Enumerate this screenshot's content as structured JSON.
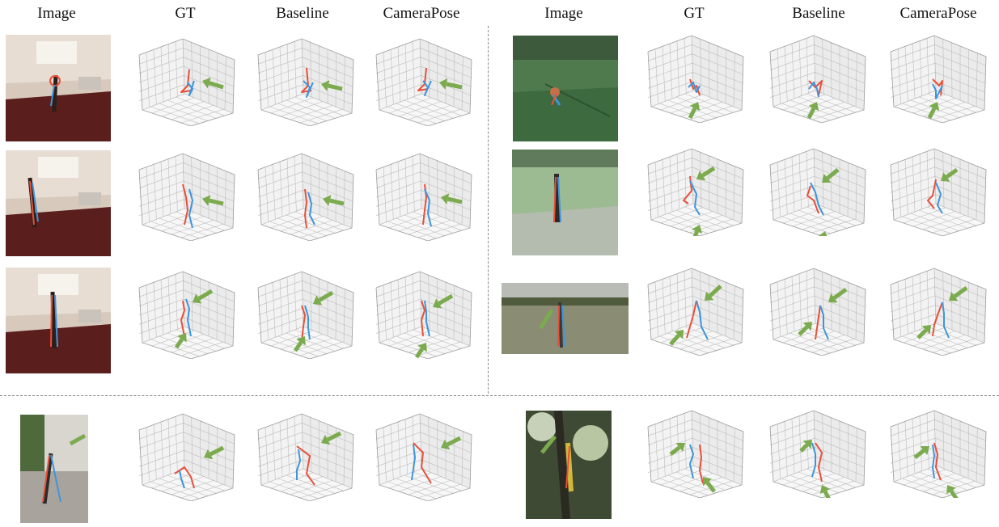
{
  "headers": {
    "left": [
      "Image",
      "GT",
      "Baseline",
      "CameraPose"
    ],
    "right": [
      "Image",
      "GT",
      "Baseline",
      "CameraPose"
    ]
  },
  "colors": {
    "left_limb": "#e8503a",
    "right_limb": "#3f95db",
    "arrow": "#7bab4e",
    "grid_line": "#bdbdbd",
    "pane_left": "#f3f3f3",
    "pane_right": "#ebebeb",
    "pane_floor": "#f7f7f7"
  },
  "rows": [
    {
      "label": "row-1-left",
      "image_scene": "indoor-studio"
    },
    {
      "label": "row-2-left",
      "image_scene": "indoor-studio"
    },
    {
      "label": "row-3-left",
      "image_scene": "indoor-studio"
    },
    {
      "label": "row-1-right",
      "image_scene": "green-studio"
    },
    {
      "label": "row-2-right",
      "image_scene": "green-studio"
    },
    {
      "label": "row-3-right",
      "image_scene": "outdoor-field"
    },
    {
      "label": "row-4-left",
      "image_scene": "outdoor-building"
    },
    {
      "label": "row-4-right",
      "image_scene": "tree-climbing"
    }
  ]
}
